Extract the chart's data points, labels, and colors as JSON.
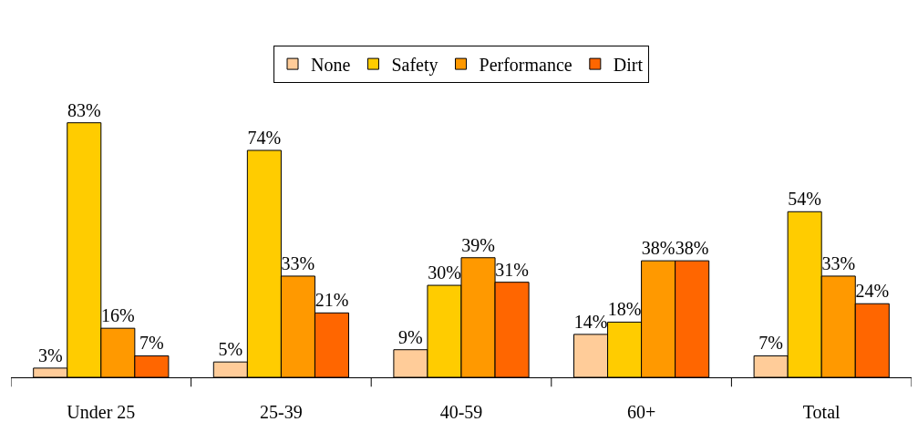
{
  "chart_data": {
    "type": "bar",
    "categories": [
      "Under 25",
      "25-39",
      "40-59",
      "60+",
      "Total"
    ],
    "series": [
      {
        "name": "None",
        "color": "#ffcc99",
        "values": [
          3,
          5,
          9,
          14,
          7
        ],
        "value_labels": [
          "3%",
          "5%",
          "9%",
          "14%",
          "7%"
        ]
      },
      {
        "name": "Safety",
        "color": "#ffcc00",
        "values": [
          83,
          74,
          30,
          18,
          54
        ],
        "value_labels": [
          "83%",
          "74%",
          "30%",
          "18%",
          "54%"
        ]
      },
      {
        "name": "Performance",
        "color": "#ff9900",
        "values": [
          16,
          33,
          39,
          38,
          33
        ],
        "value_labels": [
          "16%",
          "33%",
          "39%",
          "38%",
          "33%"
        ]
      },
      {
        "name": "Dirt",
        "color": "#ff6600",
        "values": [
          7,
          21,
          31,
          38,
          24
        ],
        "value_labels": [
          "7%",
          "21%",
          "31%",
          "38%",
          "24%"
        ]
      }
    ],
    "legend": "top"
  }
}
